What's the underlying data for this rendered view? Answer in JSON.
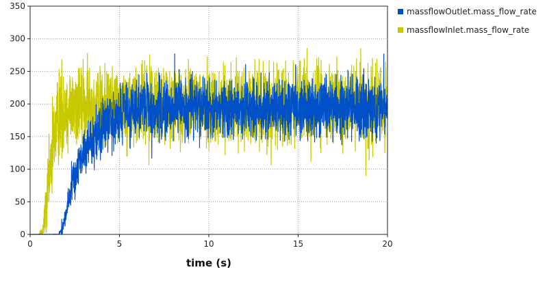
{
  "chart_data": {
    "type": "line",
    "title": "",
    "xlabel": "time (s)",
    "ylabel": "",
    "xlim": [
      0,
      20
    ],
    "ylim": [
      0,
      350
    ],
    "xticks": [
      0,
      5,
      10,
      15,
      20
    ],
    "yticks": [
      0,
      50,
      100,
      150,
      200,
      250,
      300,
      350
    ],
    "grid": true,
    "legend_position": "right",
    "series": [
      {
        "name": "massflowInlet.mass_flow_rate",
        "color": "#c8c800",
        "x": [
          0,
          0.5,
          0.7,
          0.9,
          1.1,
          1.3,
          1.5,
          1.8,
          2.2,
          2.6,
          3.0,
          3.5,
          4.0,
          4.5,
          5,
          6,
          7,
          8,
          9,
          10,
          11,
          12,
          13,
          14,
          15,
          16,
          17,
          18,
          19,
          20
        ],
        "values": [
          0,
          0,
          5,
          40,
          95,
          145,
          175,
          190,
          195,
          197,
          198,
          198,
          198,
          198,
          198,
          198,
          198,
          198,
          198,
          198,
          198,
          198,
          198,
          198,
          198,
          198,
          198,
          198,
          198,
          198
        ],
        "noise_amplitude": [
          0,
          0,
          10,
          30,
          40,
          45,
          45,
          45,
          40,
          40,
          40,
          40,
          40,
          40,
          40,
          40,
          40,
          40,
          40,
          40,
          40,
          40,
          40,
          40,
          40,
          40,
          40,
          40,
          40,
          40
        ],
        "max_value": 300
      },
      {
        "name": "massflowOutlet.mass_flow_rate",
        "color": "#0050c8",
        "x": [
          0,
          1.6,
          1.8,
          2.0,
          2.2,
          2.5,
          2.8,
          3.2,
          3.6,
          4.0,
          4.5,
          5,
          6,
          7,
          8,
          9,
          10,
          11,
          12,
          13,
          14,
          15,
          16,
          17,
          18,
          19,
          20
        ],
        "values": [
          0,
          0,
          8,
          30,
          60,
          90,
          115,
          135,
          150,
          163,
          175,
          183,
          190,
          193,
          194,
          194,
          194,
          194,
          194,
          194,
          194,
          194,
          194,
          194,
          194,
          194,
          194
        ],
        "noise_amplitude": [
          0,
          1,
          6,
          10,
          15,
          20,
          20,
          22,
          25,
          28,
          30,
          30,
          30,
          30,
          30,
          30,
          30,
          30,
          30,
          30,
          30,
          30,
          30,
          30,
          30,
          30,
          30
        ],
        "max_value": 310
      }
    ],
    "legend": [
      {
        "name": "massflowOutlet.mass_flow_rate",
        "color": "#0050c8"
      },
      {
        "name": "massflowInlet.mass_flow_rate",
        "color": "#c8c800"
      }
    ]
  }
}
